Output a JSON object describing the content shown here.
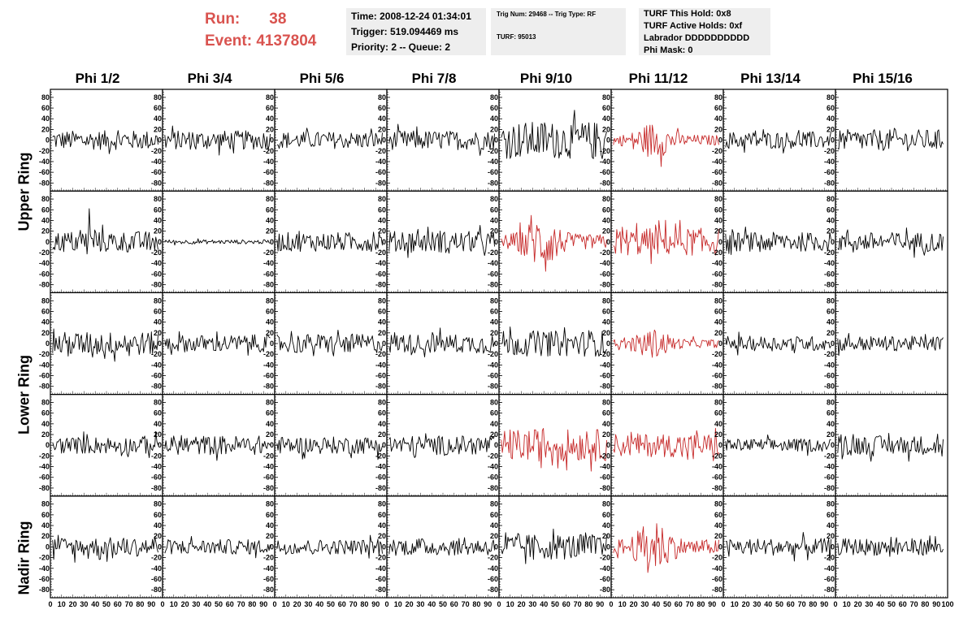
{
  "header": {
    "run_label": "Run:",
    "run_value": "38",
    "event_label": "Event:",
    "event_value": "4137804",
    "time": "Time: 2008-12-24 01:34:01",
    "trigger": "Trigger: 519.094469 ms",
    "priority": "Priority: 2 -- Queue: 2",
    "trig_num": "Trig Num: 29468 -- Trig Type: RF",
    "turf": "TURF: 95013",
    "turf_this_hold": "TURF This Hold: 0x8",
    "turf_active_holds": "TURF Active Holds: 0xf",
    "labrador": "Labrador DDDDDDDDDD",
    "phi_mask": "Phi Mask: 0"
  },
  "colors": {
    "highlight": "#c62828",
    "normal": "#000000",
    "header_accent": "#d9534f"
  },
  "chart_data": {
    "type": "line",
    "columns": [
      "Phi 1/2",
      "Phi 3/4",
      "Phi 5/6",
      "Phi 7/8",
      "Phi 9/10",
      "Phi 11/12",
      "Phi 13/14",
      "Phi 15/16"
    ],
    "row_labels": [
      {
        "label": "Upper Ring",
        "rows": [
          0,
          1
        ]
      },
      {
        "label": "Lower Ring",
        "rows": [
          2,
          3
        ]
      },
      {
        "label": "Nadir Ring",
        "rows": [
          4
        ]
      }
    ],
    "ylim": [
      -95,
      95
    ],
    "yticks": [
      "80",
      "60",
      "40",
      "20",
      "0",
      "-20",
      "-40",
      "-60",
      "-80"
    ],
    "xlim": [
      0,
      100
    ],
    "xticks": [
      "0",
      "10",
      "20",
      "30",
      "40",
      "50",
      "60",
      "70",
      "80",
      "90",
      "100"
    ],
    "samples_per_trace": 96,
    "amplitude": [
      [
        18,
        18,
        16,
        18,
        35,
        28,
        16,
        20
      ],
      [
        20,
        4,
        18,
        20,
        40,
        26,
        18,
        18
      ],
      [
        22,
        16,
        18,
        18,
        24,
        22,
        14,
        14
      ],
      [
        16,
        18,
        16,
        18,
        30,
        22,
        12,
        18
      ],
      [
        18,
        14,
        14,
        16,
        24,
        40,
        16,
        16
      ]
    ],
    "envelope": [
      [
        "flat",
        "flat",
        "flat",
        "flat",
        "flat",
        "burst",
        "flat",
        "flat"
      ],
      [
        "flat",
        "flat",
        "flat",
        "flat",
        "burst",
        "flat",
        "flat",
        "flat"
      ],
      [
        "flat",
        "flat",
        "flat",
        "flat",
        "flat",
        "burst",
        "flat",
        "flat"
      ],
      [
        "flat",
        "flat",
        "flat",
        "flat",
        "flat",
        "flat",
        "flat",
        "flat"
      ],
      [
        "flat",
        "flat",
        "flat",
        "flat",
        "flat",
        "burst",
        "flat",
        "flat"
      ]
    ],
    "highlighted": [
      [
        0,
        5
      ],
      [
        1,
        4
      ],
      [
        1,
        5
      ],
      [
        2,
        5
      ],
      [
        3,
        4
      ],
      [
        3,
        5
      ],
      [
        4,
        5
      ]
    ],
    "spikes": [
      {
        "row": 1,
        "col": 0,
        "x": 35,
        "value": 62
      }
    ]
  }
}
